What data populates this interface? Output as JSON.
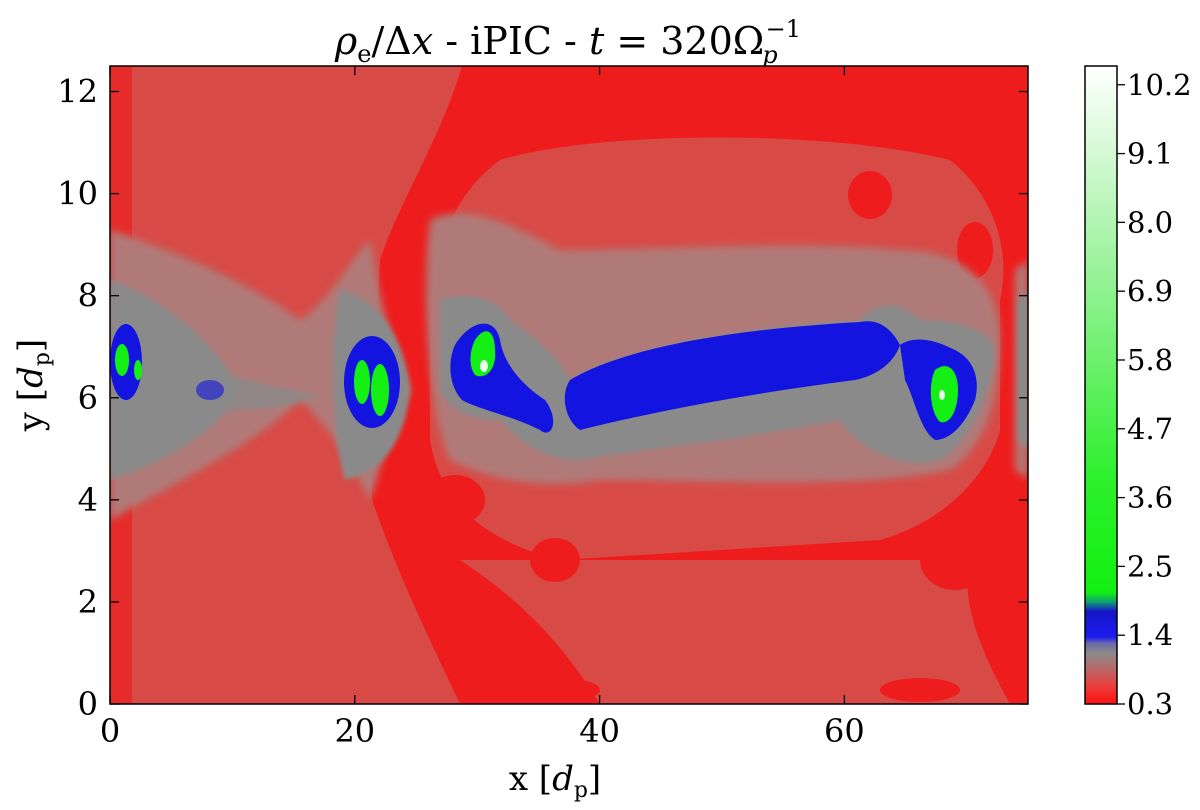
{
  "chart_data": {
    "type": "heatmap",
    "title": "ρe/Δx - iPIC - t = 320Ωp−1",
    "title_parts": {
      "rho": "ρ",
      "rho_sub": "e",
      "delta": "/Δ",
      "x": "x",
      "mid": " - iPIC - ",
      "t": "t",
      "eq": " = 320Ω",
      "omega_sub": "p",
      "omega_sup": "−1"
    },
    "xlabel": "x [dp]",
    "xlabel_parts": {
      "main": "x [",
      "d": "d",
      "sub": "p",
      "end": "]"
    },
    "ylabel": "y [dp]",
    "ylabel_parts": {
      "main": "y [",
      "d": "d",
      "sub": "p",
      "end": "]"
    },
    "xlim": [
      0,
      75
    ],
    "ylim": [
      0,
      12.5
    ],
    "xticks": [
      0,
      20,
      40,
      60
    ],
    "yticks": [
      0,
      2,
      4,
      6,
      8,
      10,
      12
    ],
    "colorbar": {
      "min": 0.3,
      "max": 10.5,
      "ticks": [
        "0.3",
        "1.4",
        "2.5",
        "3.6",
        "4.7",
        "5.8",
        "6.9",
        "8.0",
        "9.1",
        "10.2"
      ],
      "tick_values": [
        0.3,
        1.4,
        2.5,
        3.6,
        4.7,
        5.8,
        6.9,
        8.0,
        9.1,
        10.2
      ]
    },
    "colors": {
      "red": "#ee1c1c",
      "salmon": "#d94a44",
      "gray": "#8a8a8a",
      "blue": "#1414e0",
      "green": "#14f014",
      "white": "#ffffff"
    },
    "features": [
      {
        "name": "left-edge-structure",
        "x": 1.2,
        "y": 6.6
      },
      {
        "name": "x-point-region",
        "x": 10,
        "y": 6.1
      },
      {
        "name": "island-structure",
        "x": 22,
        "y": 6.1
      },
      {
        "name": "plasmoid-left-peak",
        "x": 31,
        "y": 6.6
      },
      {
        "name": "central-current-sheet",
        "x": 50,
        "y": 6.3
      },
      {
        "name": "plasmoid-right-peak",
        "x": 68,
        "y": 6.0
      }
    ]
  }
}
